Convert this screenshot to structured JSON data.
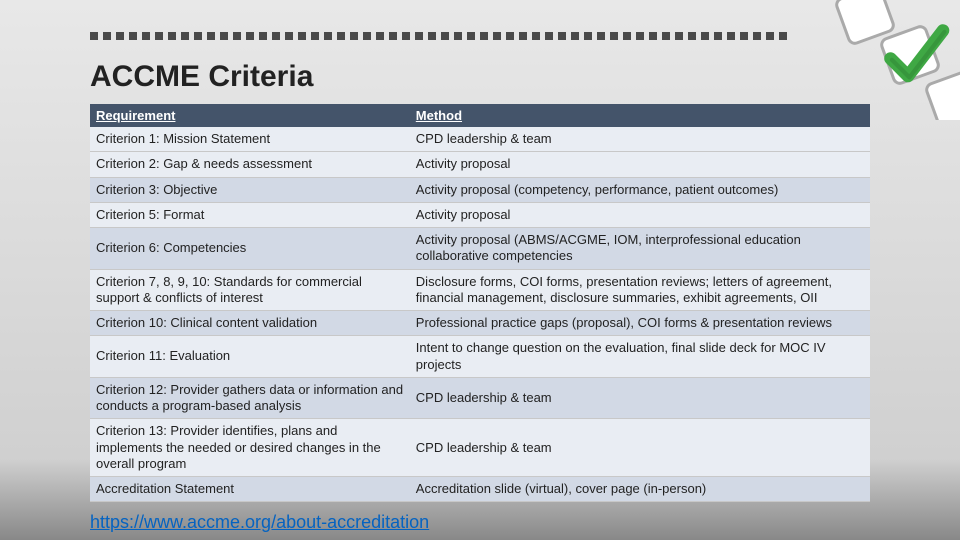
{
  "title": "ACCME Criteria",
  "link": "https://www.accme.org/about-accreditation",
  "table": {
    "header_bg": "#44546a",
    "header_fg": "#ffffff",
    "row_odd_bg": "#e9edf3",
    "row_even_bg": "#d2d9e5",
    "columns": [
      "Requirement",
      "Method"
    ],
    "rows": [
      {
        "req": "Criterion 1: Mission Statement",
        "method": "CPD leadership & team",
        "band": "odd"
      },
      {
        "req": "Criterion 2: Gap & needs assessment",
        "method": "Activity proposal",
        "band": "odd"
      },
      {
        "req": "Criterion 3: Objective",
        "method": "Activity proposal (competency, performance, patient outcomes)",
        "band": "even"
      },
      {
        "req": "Criterion 5: Format",
        "method": "Activity proposal",
        "band": "odd"
      },
      {
        "req": "Criterion 6: Competencies",
        "method": "Activity proposal (ABMS/ACGME, IOM, interprofessional education collaborative competencies",
        "band": "even"
      },
      {
        "req": "Criterion 7, 8, 9, 10: Standards for commercial support & conflicts of interest",
        "method": "Disclosure forms, COI forms, presentation reviews; letters of agreement, financial management, disclosure summaries, exhibit agreements, OII",
        "band": "odd"
      },
      {
        "req": "Criterion 10: Clinical content validation",
        "method": "Professional practice gaps (proposal), COI forms & presentation reviews",
        "band": "even"
      },
      {
        "req": "Criterion 11: Evaluation",
        "method": "Intent to change question on the evaluation, final slide deck for MOC IV projects",
        "band": "odd"
      },
      {
        "req": "Criterion 12: Provider gathers data or information and conducts a program-based analysis",
        "method": "CPD leadership & team",
        "band": "even"
      },
      {
        "req": "Criterion 13: Provider identifies, plans and implements the needed or desired changes in the overall program",
        "method": "CPD leadership & team",
        "band": "odd"
      },
      {
        "req": "Accreditation Statement",
        "method": "Accreditation slide (virtual), cover page (in-person)",
        "band": "even"
      }
    ]
  },
  "decor": {
    "checkmark_color": "#3fa844",
    "dash_color": "#4a4a4a"
  }
}
